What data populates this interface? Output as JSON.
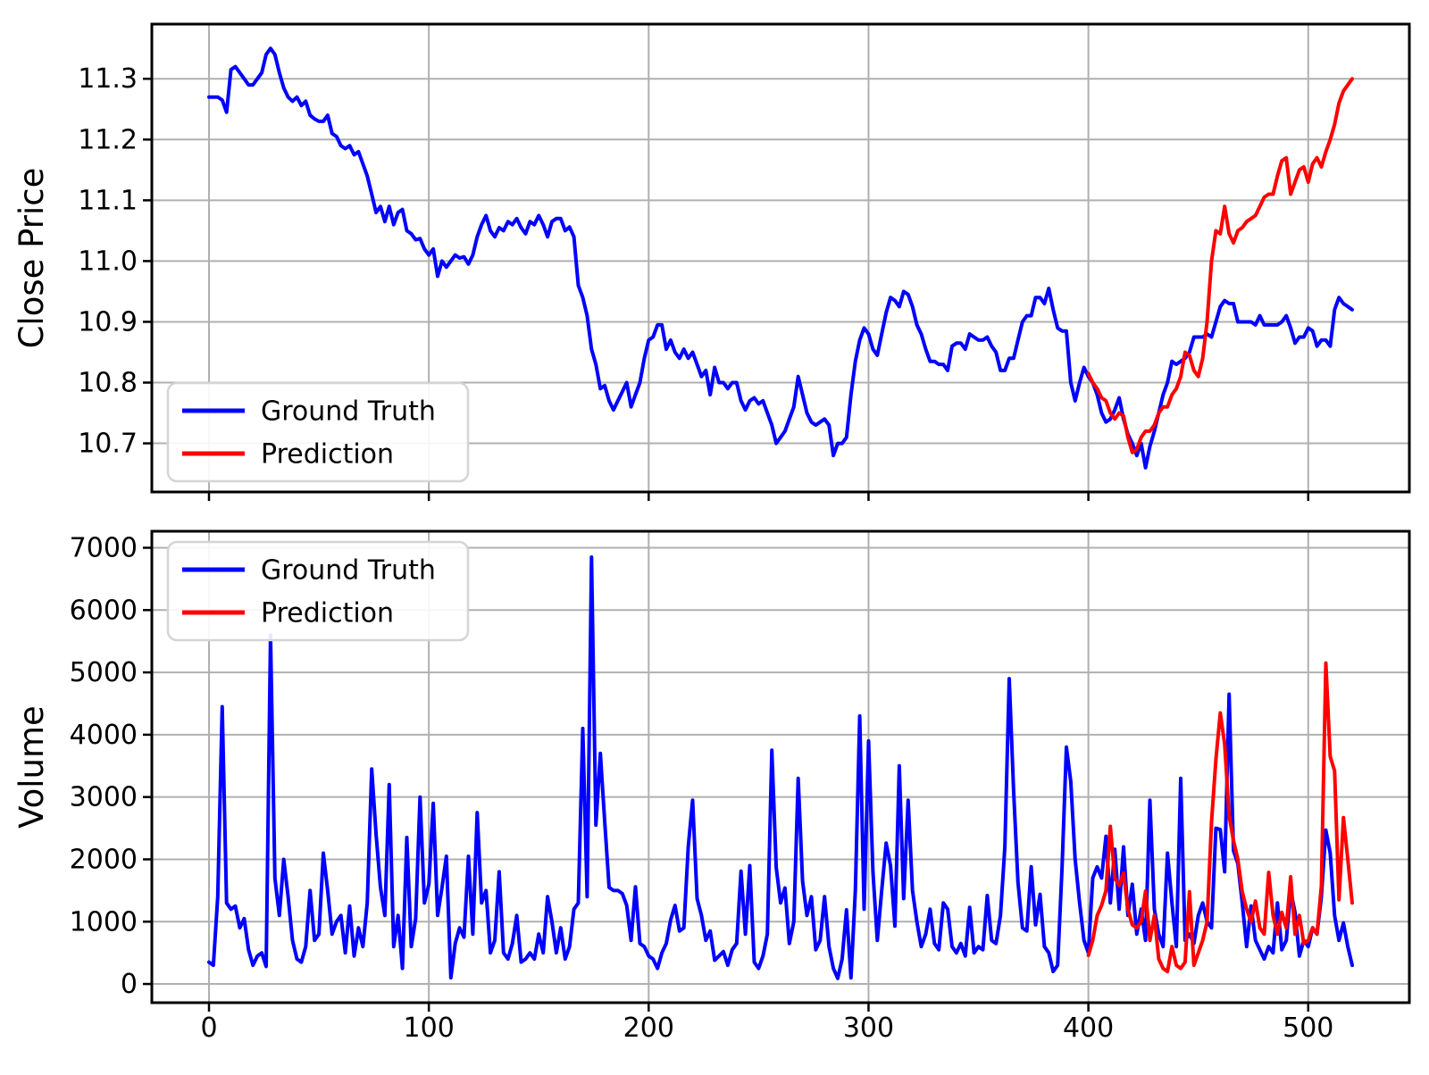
{
  "figure_title": "",
  "colors": {
    "background": "#ffffff",
    "ground_truth": "#0000ff",
    "prediction": "#ff0000",
    "grid": "#b0b0b0",
    "spine": "#000000",
    "tick_text": "#000000",
    "legend_border": "#d5d5d5",
    "legend_fill": "#ffffff"
  },
  "legend": {
    "ground_truth_label": "Ground Truth",
    "prediction_label": "Prediction"
  },
  "chart_data": [
    {
      "type": "line",
      "title": "",
      "xlabel": "",
      "ylabel": "Close Price",
      "grid": true,
      "legend_loc": "lower left",
      "xlim": [
        -26,
        546
      ],
      "ylim": [
        10.62,
        11.39
      ],
      "xticks": {
        "values": [
          0,
          100,
          200,
          300,
          400,
          500
        ],
        "labels": [
          "0",
          "100",
          "200",
          "300",
          "400",
          "500"
        ],
        "show_labels": false
      },
      "yticks": {
        "values": [
          10.7,
          10.8,
          10.9,
          11.0,
          11.1,
          11.2,
          11.3
        ],
        "labels": [
          "10.7",
          "10.8",
          "10.9",
          "11.0",
          "11.1",
          "11.2",
          "11.3"
        ]
      },
      "series": [
        {
          "name": "Ground Truth",
          "color_key": "ground_truth",
          "x_start": 0,
          "x_step": 2,
          "values": [
            11.27,
            11.27,
            11.27,
            11.265,
            11.245,
            11.315,
            11.32,
            11.31,
            11.3,
            11.29,
            11.29,
            11.3,
            11.31,
            11.34,
            11.35,
            11.34,
            11.31,
            11.285,
            11.27,
            11.263,
            11.27,
            11.256,
            11.263,
            11.24,
            11.234,
            11.23,
            11.23,
            11.24,
            11.21,
            11.205,
            11.19,
            11.185,
            11.19,
            11.175,
            11.18,
            11.16,
            11.14,
            11.11,
            11.08,
            11.09,
            11.065,
            11.09,
            11.06,
            11.08,
            11.085,
            11.05,
            11.045,
            11.035,
            11.037,
            11.02,
            11.01,
            11.02,
            10.975,
            11.0,
            10.99,
            11.0,
            11.01,
            11.005,
            11.007,
            10.995,
            11.01,
            11.04,
            11.06,
            11.075,
            11.05,
            11.04,
            11.055,
            11.05,
            11.065,
            11.06,
            11.07,
            11.055,
            11.045,
            11.065,
            11.06,
            11.075,
            11.06,
            11.04,
            11.065,
            11.07,
            11.07,
            11.05,
            11.056,
            11.04,
            10.96,
            10.94,
            10.91,
            10.855,
            10.83,
            10.79,
            10.795,
            10.77,
            10.755,
            10.77,
            10.785,
            10.8,
            10.76,
            10.78,
            10.8,
            10.84,
            10.87,
            10.875,
            10.895,
            10.895,
            10.855,
            10.87,
            10.85,
            10.84,
            10.855,
            10.84,
            10.85,
            10.83,
            10.81,
            10.82,
            10.78,
            10.825,
            10.8,
            10.8,
            10.79,
            10.8,
            10.8,
            10.77,
            10.755,
            10.77,
            10.775,
            10.765,
            10.77,
            10.75,
            10.73,
            10.7,
            10.71,
            10.72,
            10.74,
            10.76,
            10.81,
            10.78,
            10.75,
            10.735,
            10.73,
            10.735,
            10.74,
            10.73,
            10.68,
            10.7,
            10.7,
            10.71,
            10.78,
            10.835,
            10.87,
            10.89,
            10.88,
            10.855,
            10.845,
            10.88,
            10.915,
            10.94,
            10.935,
            10.925,
            10.95,
            10.945,
            10.925,
            10.895,
            10.88,
            10.855,
            10.835,
            10.835,
            10.83,
            10.83,
            10.82,
            10.86,
            10.865,
            10.865,
            10.855,
            10.88,
            10.875,
            10.87,
            10.87,
            10.875,
            10.86,
            10.85,
            10.82,
            10.82,
            10.84,
            10.84,
            10.87,
            10.9,
            10.91,
            10.91,
            10.94,
            10.94,
            10.93,
            10.955,
            10.92,
            10.89,
            10.885,
            10.885,
            10.8,
            10.77,
            10.8,
            10.825,
            10.81,
            10.8,
            10.78,
            10.75,
            10.735,
            10.74,
            10.755,
            10.775,
            10.74,
            10.715,
            10.7,
            10.68,
            10.7,
            10.66,
            10.695,
            10.72,
            10.75,
            10.78,
            10.8,
            10.835,
            10.83,
            10.835,
            10.84,
            10.85,
            10.875,
            10.875,
            10.875,
            10.88,
            10.875,
            10.9,
            10.925,
            10.935,
            10.93,
            10.93,
            10.9,
            10.9,
            10.9,
            10.9,
            10.895,
            10.91,
            10.895,
            10.895,
            10.895,
            10.895,
            10.9,
            10.91,
            10.89,
            10.865,
            10.875,
            10.875,
            10.89,
            10.885,
            10.86,
            10.87,
            10.87,
            10.86,
            10.92,
            10.94,
            10.93,
            10.925,
            10.92
          ]
        },
        {
          "name": "Prediction",
          "color_key": "prediction",
          "x_start": 400,
          "x_step": 2,
          "values": [
            10.815,
            10.8,
            10.79,
            10.775,
            10.77,
            10.75,
            10.74,
            10.75,
            10.745,
            10.71,
            10.685,
            10.69,
            10.71,
            10.72,
            10.72,
            10.73,
            10.75,
            10.76,
            10.76,
            10.78,
            10.79,
            10.81,
            10.85,
            10.845,
            10.82,
            10.81,
            10.84,
            10.9,
            11.0,
            11.05,
            11.045,
            11.09,
            11.045,
            11.03,
            11.05,
            11.055,
            11.065,
            11.07,
            11.075,
            11.09,
            11.105,
            11.11,
            11.11,
            11.14,
            11.165,
            11.17,
            11.11,
            11.13,
            11.15,
            11.155,
            11.13,
            11.16,
            11.17,
            11.155,
            11.18,
            11.2,
            11.225,
            11.26,
            11.28,
            11.29,
            11.3
          ]
        }
      ]
    },
    {
      "type": "line",
      "title": "",
      "xlabel": "",
      "ylabel": "Volume",
      "grid": true,
      "legend_loc": "upper left",
      "xlim": [
        -26,
        546
      ],
      "ylim": [
        -300,
        7265
      ],
      "xticks": {
        "values": [
          0,
          100,
          200,
          300,
          400,
          500
        ],
        "labels": [
          "0",
          "100",
          "200",
          "300",
          "400",
          "500"
        ],
        "show_labels": true
      },
      "yticks": {
        "values": [
          0,
          1000,
          2000,
          3000,
          4000,
          5000,
          6000,
          7000
        ],
        "labels": [
          "0",
          "1000",
          "2000",
          "3000",
          "4000",
          "5000",
          "6000",
          "7000"
        ]
      },
      "series": [
        {
          "name": "Ground Truth",
          "color_key": "ground_truth",
          "x_start": 0,
          "x_step": 2,
          "values": [
            350,
            300,
            1400,
            4450,
            1300,
            1200,
            1250,
            900,
            1050,
            550,
            300,
            450,
            500,
            280,
            5600,
            1700,
            1100,
            2000,
            1400,
            700,
            400,
            350,
            600,
            1500,
            700,
            800,
            2100,
            1500,
            800,
            1000,
            1100,
            500,
            1250,
            450,
            900,
            600,
            1300,
            3450,
            2400,
            1550,
            1100,
            3200,
            600,
            1100,
            250,
            2350,
            600,
            1050,
            3000,
            1300,
            1600,
            2900,
            1100,
            1550,
            2050,
            100,
            650,
            900,
            750,
            2050,
            800,
            2750,
            1300,
            1500,
            500,
            700,
            1800,
            500,
            400,
            650,
            1100,
            350,
            400,
            500,
            400,
            800,
            500,
            1400,
            1000,
            500,
            900,
            400,
            600,
            1200,
            1300,
            4100,
            1400,
            6850,
            2550,
            3700,
            2600,
            1550,
            1500,
            1500,
            1450,
            1260,
            700,
            1560,
            650,
            600,
            450,
            400,
            250,
            500,
            650,
            1030,
            1260,
            850,
            900,
            2200,
            2950,
            1370,
            1100,
            700,
            850,
            380,
            450,
            520,
            300,
            550,
            650,
            1810,
            800,
            1900,
            350,
            250,
            450,
            800,
            3750,
            1870,
            1300,
            1540,
            650,
            1000,
            3300,
            1650,
            1100,
            1400,
            550,
            700,
            1400,
            600,
            250,
            90,
            400,
            1190,
            100,
            1500,
            4300,
            1200,
            3900,
            1800,
            700,
            1500,
            2260,
            1900,
            930,
            3500,
            1370,
            2950,
            1500,
            1000,
            600,
            800,
            1200,
            650,
            550,
            1300,
            1200,
            600,
            500,
            650,
            450,
            1230,
            500,
            600,
            550,
            1420,
            700,
            650,
            1100,
            2200,
            4900,
            3100,
            1630,
            900,
            850,
            1880,
            950,
            1440,
            600,
            500,
            200,
            300,
            1850,
            3800,
            3250,
            2000,
            1300,
            700,
            500,
            1700,
            1880,
            1700,
            2370,
            1300,
            2160,
            1200,
            2200,
            1100,
            1600,
            800,
            1200,
            700,
            2950,
            1200,
            800,
            600,
            2100,
            1300,
            600,
            3300,
            700,
            800,
            650,
            1100,
            1300,
            1000,
            900,
            2500,
            2480,
            1800,
            4650,
            2140,
            1930,
            1300,
            600,
            1250,
            700,
            550,
            400,
            600,
            500,
            1300,
            550,
            700,
            1500,
            1150,
            450,
            700,
            600,
            900,
            800,
            1400,
            2470,
            2100,
            1100,
            700,
            980,
            600,
            300
          ]
        },
        {
          "name": "Prediction",
          "color_key": "prediction",
          "x_start": 400,
          "x_step": 2,
          "values": [
            460,
            700,
            1100,
            1260,
            1500,
            2530,
            1700,
            1580,
            1780,
            1200,
            950,
            900,
            1000,
            1490,
            700,
            1100,
            400,
            250,
            200,
            600,
            300,
            250,
            350,
            1480,
            300,
            500,
            700,
            1000,
            2600,
            3600,
            4350,
            3850,
            2700,
            2300,
            2000,
            1480,
            1200,
            1000,
            1330,
            900,
            800,
            1790,
            1100,
            800,
            1150,
            900,
            1720,
            800,
            1100,
            650,
            700,
            900,
            800,
            1570,
            5150,
            3650,
            3420,
            1350,
            2670,
            2000,
            1300
          ]
        }
      ]
    }
  ]
}
